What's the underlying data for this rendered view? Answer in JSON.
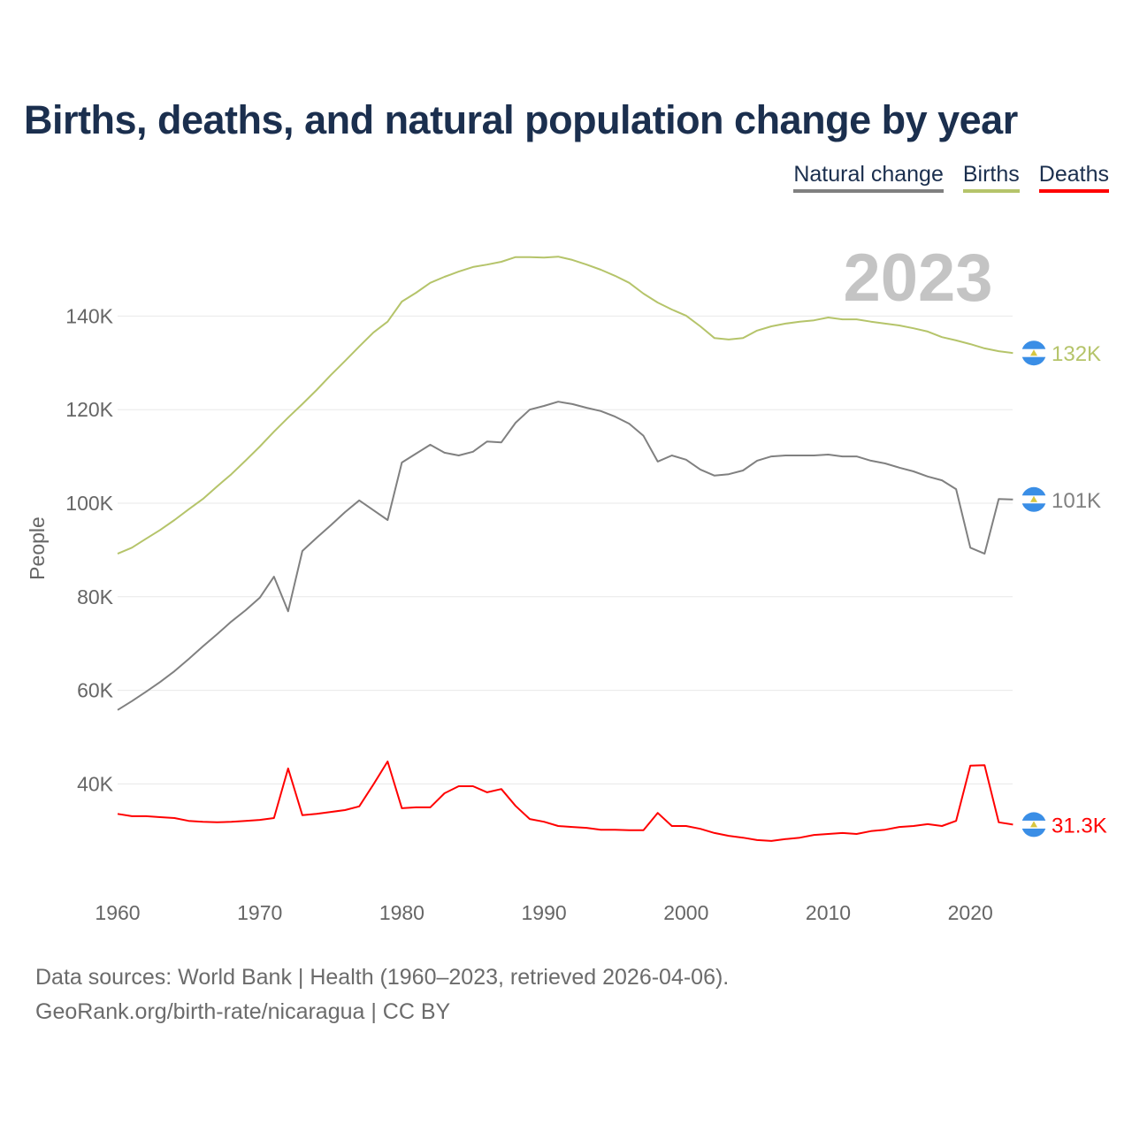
{
  "chart_data": {
    "type": "line",
    "title": "Births, deaths, and natural population change by year",
    "xlabel": "",
    "ylabel": "People",
    "xlim": [
      1960,
      2023
    ],
    "ylim": [
      20000,
      150000
    ],
    "x_ticks": [
      1960,
      1970,
      1980,
      1990,
      2000,
      2010,
      2020
    ],
    "x_tick_labels": [
      "1960",
      "1970",
      "1980",
      "1990",
      "2000",
      "2010",
      "2020"
    ],
    "y_ticks": [
      40000,
      60000,
      80000,
      100000,
      120000,
      140000
    ],
    "y_tick_labels": [
      "40K",
      "60K",
      "80K",
      "100K",
      "120K",
      "140K"
    ],
    "grid": true,
    "legend_position": "top-right",
    "year_watermark": "2023",
    "x": [
      1960,
      1961,
      1962,
      1963,
      1964,
      1965,
      1966,
      1967,
      1968,
      1969,
      1970,
      1971,
      1972,
      1973,
      1974,
      1975,
      1976,
      1977,
      1978,
      1979,
      1980,
      1981,
      1982,
      1983,
      1984,
      1985,
      1986,
      1987,
      1988,
      1989,
      1990,
      1991,
      1992,
      1993,
      1994,
      1995,
      1996,
      1997,
      1998,
      1999,
      2000,
      2001,
      2002,
      2003,
      2004,
      2005,
      2006,
      2007,
      2008,
      2009,
      2010,
      2011,
      2012,
      2013,
      2014,
      2015,
      2016,
      2017,
      2018,
      2019,
      2020,
      2021,
      2022,
      2023
    ],
    "series": [
      {
        "name": "Natural change",
        "color": "#808080",
        "end_label": "101K",
        "values": [
          55.8,
          57.7,
          59.7,
          61.8,
          64.1,
          66.7,
          69.4,
          72.0,
          74.7,
          77.1,
          79.8,
          84.3,
          76.9,
          89.8,
          92.6,
          95.3,
          98.1,
          100.6,
          98.5,
          96.4,
          108.7,
          110.6,
          112.5,
          110.8,
          110.2,
          111.0,
          113.2,
          113.0,
          117.2,
          120.0,
          120.8,
          121.7,
          121.2,
          120.4,
          119.7,
          118.5,
          117.0,
          114.4,
          108.9,
          110.2,
          109.3,
          107.2,
          105.9,
          106.2,
          107.0,
          109.1,
          110.0,
          110.2,
          110.2,
          110.2,
          110.4,
          110.0,
          110.0,
          109.1,
          108.5,
          107.6,
          106.8,
          105.7,
          104.9,
          103.0,
          90.5,
          89.2,
          100.9,
          100.8
        ]
      },
      {
        "name": "Births",
        "color": "#b5c46a",
        "end_label": "132K",
        "values": [
          89.2,
          90.5,
          92.4,
          94.3,
          96.4,
          98.7,
          100.9,
          103.6,
          106.2,
          109.1,
          112.1,
          115.3,
          118.3,
          121.2,
          124.2,
          127.4,
          130.4,
          133.5,
          136.5,
          138.8,
          143.1,
          145.0,
          147.1,
          148.4,
          149.5,
          150.5,
          151.0,
          151.6,
          152.6,
          152.6,
          152.5,
          152.7,
          152.0,
          151.0,
          149.9,
          148.6,
          147.1,
          144.8,
          142.9,
          141.4,
          140.1,
          137.8,
          135.3,
          135.0,
          135.3,
          136.9,
          137.8,
          138.4,
          138.8,
          139.1,
          139.7,
          139.3,
          139.3,
          138.8,
          138.4,
          138.0,
          137.4,
          136.7,
          135.5,
          134.8,
          134.0,
          133.1,
          132.5,
          132.1
        ]
      },
      {
        "name": "Deaths",
        "color": "#ff0000",
        "end_label": "31.3K",
        "values": [
          33.6,
          33.1,
          33.1,
          32.9,
          32.7,
          32.1,
          31.9,
          31.8,
          31.9,
          32.1,
          32.3,
          32.7,
          43.3,
          33.3,
          33.6,
          34.0,
          34.4,
          35.2,
          39.9,
          44.8,
          34.8,
          35.0,
          35.0,
          38.0,
          39.5,
          39.5,
          38.2,
          38.9,
          35.3,
          32.5,
          31.9,
          31.0,
          30.8,
          30.6,
          30.2,
          30.2,
          30.1,
          30.1,
          33.8,
          31.0,
          31.0,
          30.4,
          29.5,
          28.9,
          28.5,
          28.0,
          27.8,
          28.2,
          28.5,
          29.1,
          29.3,
          29.5,
          29.3,
          29.9,
          30.2,
          30.8,
          31.0,
          31.4,
          31.0,
          32.1,
          43.9,
          44.0,
          31.8,
          31.3
        ]
      }
    ],
    "value_units": "thousands of people"
  },
  "legend": [
    "Natural change",
    "Births",
    "Deaths"
  ],
  "footer": {
    "line1": "Data sources: World Bank | Health (1960–2023, retrieved 2026-04-06).",
    "line2": "GeoRank.org/birth-rate/nicaragua | CC BY"
  }
}
